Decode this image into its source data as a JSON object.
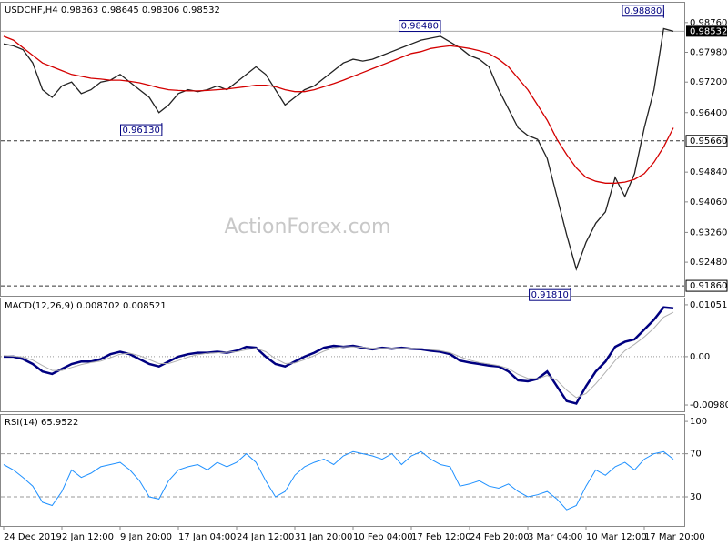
{
  "chart_data": [
    {
      "type": "line",
      "title": "USDCHF,H4  0.98363 0.98645 0.98306 0.98532",
      "watermark": "ActionForex.com",
      "ylim": [
        0.916,
        0.9928
      ],
      "yticks": [
        {
          "value": 0.9876,
          "label": "0.98760"
        },
        {
          "value": 0.9798,
          "label": "0.97980"
        },
        {
          "value": 0.972,
          "label": "0.97200"
        },
        {
          "value": 0.964,
          "label": "0.96400"
        },
        {
          "value": 0.9484,
          "label": "0.94840"
        },
        {
          "value": 0.9406,
          "label": "0.94060"
        },
        {
          "value": 0.9326,
          "label": "0.93260"
        },
        {
          "value": 0.9248,
          "label": "0.92480"
        }
      ],
      "levels": [
        {
          "value": 0.9566,
          "label": "0.95660"
        },
        {
          "value": 0.9186,
          "label": "0.91860"
        }
      ],
      "current_price": {
        "value": 0.98532,
        "label": "0.98532"
      },
      "annotations": [
        {
          "x": 16.3,
          "value": 0.9613,
          "label": "0.96130"
        },
        {
          "x": 45,
          "value": 0.9848,
          "label": "0.98480"
        },
        {
          "x": 58.4,
          "value": 0.9181,
          "label": "0.91810"
        },
        {
          "x": 68,
          "value": 0.9888,
          "label": "0.98880"
        }
      ],
      "series": [
        {
          "color": "#222222",
          "values": [
            0.982,
            0.9815,
            0.9805,
            0.977,
            0.97,
            0.968,
            0.971,
            0.972,
            0.969,
            0.97,
            0.972,
            0.9725,
            0.974,
            0.972,
            0.97,
            0.968,
            0.964,
            0.966,
            0.969,
            0.97,
            0.9695,
            0.97,
            0.971,
            0.97,
            0.972,
            0.974,
            0.976,
            0.974,
            0.97,
            0.966,
            0.968,
            0.97,
            0.971,
            0.973,
            0.975,
            0.977,
            0.978,
            0.9775,
            0.978,
            0.979,
            0.98,
            0.981,
            0.982,
            0.983,
            0.9835,
            0.984,
            0.9825,
            0.981,
            0.979,
            0.978,
            0.976,
            0.97,
            0.965,
            0.96,
            0.958,
            0.957,
            0.952,
            0.942,
            0.932,
            0.923,
            0.93,
            0.935,
            0.938,
            0.947,
            0.942,
            0.948,
            0.96,
            0.97,
            0.986,
            0.9853
          ]
        },
        {
          "color": "#d40000",
          "values": [
            0.984,
            0.983,
            0.981,
            0.979,
            0.977,
            0.976,
            0.975,
            0.974,
            0.9735,
            0.973,
            0.9728,
            0.9725,
            0.9725,
            0.9722,
            0.9718,
            0.9712,
            0.9705,
            0.97,
            0.9698,
            0.9697,
            0.9697,
            0.9698,
            0.97,
            0.9702,
            0.9705,
            0.9708,
            0.9712,
            0.9712,
            0.9708,
            0.97,
            0.9695,
            0.9695,
            0.97,
            0.9708,
            0.9716,
            0.9725,
            0.9735,
            0.9745,
            0.9755,
            0.9765,
            0.9775,
            0.9785,
            0.9795,
            0.98,
            0.9808,
            0.9812,
            0.9815,
            0.9812,
            0.9808,
            0.9802,
            0.9795,
            0.978,
            0.976,
            0.973,
            0.97,
            0.966,
            0.962,
            0.957,
            0.953,
            0.9495,
            0.947,
            0.946,
            0.9455,
            0.9455,
            0.9458,
            0.9465,
            0.948,
            0.951,
            0.955,
            0.96
          ]
        }
      ]
    },
    {
      "type": "line",
      "title": "MACD(12,26,9) 0.008702 0.008521",
      "ylim": [
        -0.01109,
        0.01179
      ],
      "yticks": [
        0.010513,
        {
          "value": 0,
          "label": "0.00"
        },
        -0.009804
      ],
      "levels": [
        0
      ],
      "series": [
        {
          "color": "#000080",
          "width": 2.5,
          "values": [
            0.0,
            0.0,
            -0.0005,
            -0.0015,
            -0.003,
            -0.0035,
            -0.0025,
            -0.0015,
            -0.001,
            -0.001,
            -0.0005,
            0.0005,
            0.001,
            0.0005,
            -0.0005,
            -0.0015,
            -0.002,
            -0.001,
            0.0,
            0.0005,
            0.0008,
            0.0008,
            0.001,
            0.0008,
            0.0012,
            0.002,
            0.0018,
            0.0,
            -0.0015,
            -0.002,
            -0.001,
            0.0,
            0.0008,
            0.0018,
            0.0022,
            0.002,
            0.0022,
            0.0018,
            0.0015,
            0.0018,
            0.0016,
            0.0018,
            0.0016,
            0.0015,
            0.0012,
            0.001,
            0.0005,
            -0.0008,
            -0.0012,
            -0.0015,
            -0.0018,
            -0.002,
            -0.003,
            -0.0048,
            -0.005,
            -0.0045,
            -0.003,
            -0.006,
            -0.009,
            -0.0095,
            -0.006,
            -0.003,
            -0.001,
            0.002,
            0.003,
            0.0035,
            0.0055,
            0.0075,
            0.01,
            0.0098
          ]
        },
        {
          "color": "#b0b0b0",
          "width": 1,
          "values": [
            0.0002,
            0.0001,
            -0.0001,
            -0.0007,
            -0.0018,
            -0.0028,
            -0.0028,
            -0.0022,
            -0.0016,
            -0.0012,
            -0.0009,
            -0.0002,
            0.0005,
            0.0007,
            0.0002,
            -0.0006,
            -0.0014,
            -0.0014,
            -0.0008,
            -0.0001,
            0.0004,
            0.0007,
            0.0008,
            0.0009,
            0.001,
            0.0014,
            0.0017,
            0.001,
            -0.0004,
            -0.0014,
            -0.0013,
            -0.0006,
            0.0002,
            0.0011,
            0.0018,
            0.002,
            0.002,
            0.0019,
            0.0017,
            0.0017,
            0.0017,
            0.0017,
            0.0017,
            0.0016,
            0.0014,
            0.0012,
            0.0008,
            0.0,
            -0.0007,
            -0.0012,
            -0.0015,
            -0.0018,
            -0.0024,
            -0.0036,
            -0.0044,
            -0.0045,
            -0.0038,
            -0.0048,
            -0.0068,
            -0.0083,
            -0.0075,
            -0.0055,
            -0.0032,
            -0.0008,
            0.0012,
            0.0025,
            0.004,
            0.0058,
            0.008,
            0.009
          ]
        }
      ]
    },
    {
      "type": "line",
      "title": "RSI(14) 65.9522",
      "ylim": [
        3,
        106
      ],
      "yticks": [
        100,
        70,
        30
      ],
      "levels": [
        70,
        30
      ],
      "categories": [
        "24 Dec 2019",
        null,
        null,
        null,
        null,
        null,
        "2 Jan 12:00",
        null,
        null,
        null,
        null,
        null,
        "9 Jan 20:00",
        null,
        null,
        null,
        null,
        null,
        "17 Jan 04:00",
        null,
        null,
        null,
        null,
        null,
        "24 Jan 12:00",
        null,
        null,
        null,
        null,
        null,
        "31 Jan 20:00",
        null,
        null,
        null,
        null,
        null,
        "10 Feb 04:00",
        null,
        null,
        null,
        null,
        null,
        "17 Feb 12:00",
        null,
        null,
        null,
        null,
        null,
        "24 Feb 20:00",
        null,
        null,
        null,
        null,
        null,
        "3 Mar 04:00",
        null,
        null,
        null,
        null,
        null,
        "10 Mar 12:00",
        null,
        null,
        null,
        null,
        null,
        "17 Mar 20:00",
        null,
        null,
        null
      ],
      "series": [
        {
          "color": "#1e90ff",
          "width": 1,
          "values": [
            60,
            55,
            48,
            40,
            25,
            22,
            35,
            55,
            48,
            52,
            58,
            60,
            62,
            55,
            45,
            30,
            28,
            45,
            55,
            58,
            60,
            55,
            62,
            58,
            62,
            70,
            62,
            45,
            30,
            35,
            50,
            58,
            62,
            65,
            60,
            68,
            72,
            70,
            68,
            65,
            70,
            60,
            68,
            72,
            65,
            60,
            58,
            40,
            42,
            45,
            40,
            38,
            42,
            35,
            30,
            32,
            35,
            28,
            18,
            22,
            40,
            55,
            50,
            58,
            62,
            55,
            65,
            70,
            72,
            65
          ]
        }
      ]
    }
  ]
}
